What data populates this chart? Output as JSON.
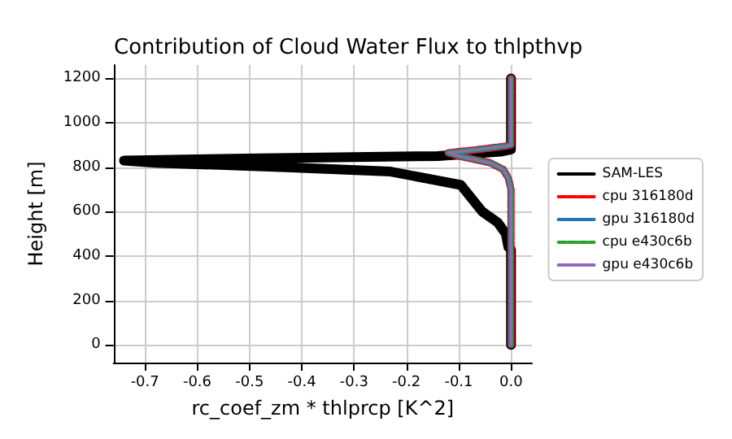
{
  "chart_data": {
    "type": "line",
    "title": "Contribution of Cloud Water Flux to thlpthvp",
    "xlabel": "rc_coef_zm * thlprcp [K^2]",
    "ylabel": "Height [m]",
    "xlim": [
      -0.76,
      0.04
    ],
    "xticks": [
      -0.7,
      -0.6,
      -0.5,
      -0.4,
      -0.3,
      -0.2,
      -0.1,
      {
        "value": 0,
        "label": "0.0"
      }
    ],
    "ylim": [
      -80,
      1260
    ],
    "yticks": [
      0,
      200,
      400,
      600,
      800,
      1000,
      1200
    ],
    "grid": true,
    "legend": "right",
    "marker": "none",
    "series": [
      {
        "name": "SAM-LES",
        "color": "#000000",
        "line_style": "solid",
        "x": [
          0,
          0,
          -0.005,
          -0.01,
          -0.025,
          -0.055,
          -0.096,
          -0.23,
          -0.43,
          -0.68,
          -0.74,
          -0.48,
          -0.14,
          -0.02,
          0,
          0
        ],
        "values": [
          0,
          430,
          440,
          500,
          550,
          600,
          720,
          780,
          800,
          820,
          830,
          840,
          850,
          870,
          880,
          1200
        ]
      },
      {
        "name": "cpu 316180d",
        "color": "#ff0000",
        "line_style": "dashed",
        "x": [
          0,
          0,
          -0.005,
          -0.015,
          -0.04,
          -0.1,
          -0.12,
          -0.06,
          -0.01,
          0,
          0
        ],
        "values": [
          0,
          700,
          750,
          790,
          820,
          850,
          865,
          880,
          895,
          900,
          1200
        ]
      },
      {
        "name": "gpu 316180d",
        "color": "#1f77b4",
        "line_style": "solid",
        "x": [
          0,
          0,
          -0.005,
          -0.015,
          -0.04,
          -0.1,
          -0.12,
          -0.06,
          -0.01,
          0,
          0
        ],
        "values": [
          0,
          700,
          750,
          790,
          820,
          850,
          865,
          880,
          895,
          900,
          1200
        ]
      },
      {
        "name": "cpu e430c6b",
        "color": "#2ca02c",
        "line_style": "dashed",
        "x": [
          0,
          0,
          -0.005,
          -0.015,
          -0.04,
          -0.1,
          -0.12,
          -0.06,
          -0.01,
          0,
          0
        ],
        "values": [
          0,
          700,
          750,
          790,
          820,
          850,
          865,
          880,
          895,
          900,
          1200
        ]
      },
      {
        "name": "gpu e430c6b",
        "color": "#9467bd",
        "line_style": "solid",
        "x": [
          0,
          0,
          -0.005,
          -0.015,
          -0.04,
          -0.1,
          -0.12,
          -0.06,
          -0.01,
          0,
          0
        ],
        "values": [
          0,
          700,
          750,
          790,
          820,
          850,
          865,
          880,
          895,
          900,
          1200
        ]
      }
    ]
  }
}
